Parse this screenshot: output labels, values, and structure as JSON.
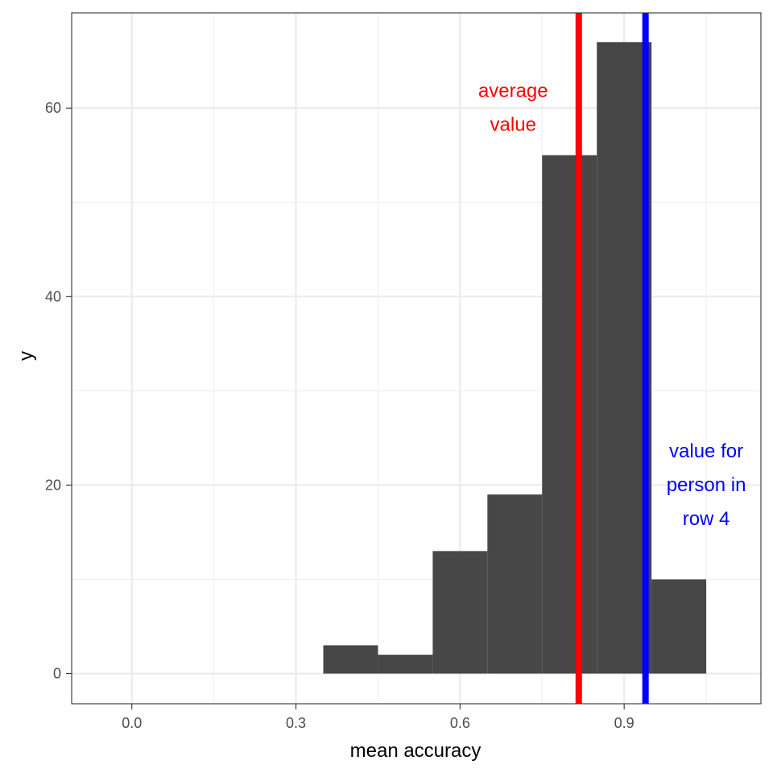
{
  "chart_data": {
    "type": "bar",
    "xlabel": "mean accuracy",
    "ylabel": "y",
    "xlim": [
      -0.11,
      1.15
    ],
    "ylim": [
      -3.2,
      70.1
    ],
    "x_ticks": [
      "0.0",
      "0.3",
      "0.6",
      "0.9"
    ],
    "x_tick_values": [
      0.0,
      0.3,
      0.6,
      0.9
    ],
    "x_minor_ticks": [
      0.15,
      0.45,
      0.75,
      1.05
    ],
    "y_ticks": [
      "0",
      "20",
      "40",
      "60"
    ],
    "y_tick_values": [
      0,
      20,
      40,
      60
    ],
    "y_minor_ticks": [
      10,
      30,
      50
    ],
    "grid": true,
    "bar_color": "#474747",
    "bins": [
      {
        "from": 0.35,
        "to": 0.45,
        "count": 3
      },
      {
        "from": 0.45,
        "to": 0.55,
        "count": 2
      },
      {
        "from": 0.55,
        "to": 0.65,
        "count": 13
      },
      {
        "from": 0.65,
        "to": 0.75,
        "count": 19
      },
      {
        "from": 0.75,
        "to": 0.85,
        "count": 55
      },
      {
        "from": 0.85,
        "to": 0.95,
        "count": 67
      },
      {
        "from": 0.95,
        "to": 1.05,
        "count": 10
      }
    ],
    "vlines": [
      {
        "x": 0.817,
        "color": "#ff0000",
        "name": "average"
      },
      {
        "x": 0.939,
        "color": "#0000ff",
        "name": "row4"
      }
    ],
    "annotations": [
      {
        "lines": [
          "average",
          "value"
        ],
        "x": 0.697,
        "y": 60,
        "color": "#ff0000"
      },
      {
        "lines": [
          "value for",
          "person in",
          "row 4"
        ],
        "x": 1.05,
        "y": 20,
        "color": "#0000ff"
      }
    ]
  }
}
